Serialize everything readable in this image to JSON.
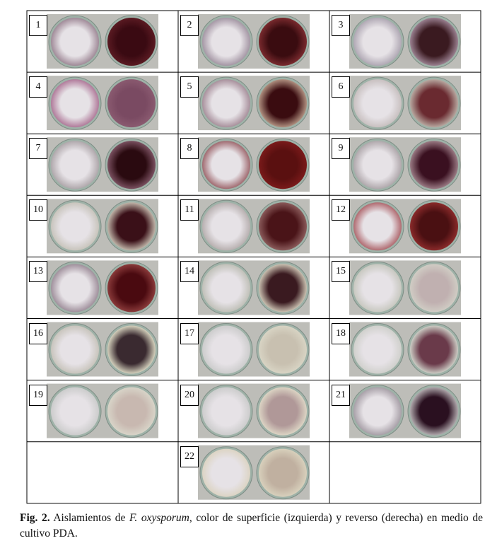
{
  "figure": {
    "cells": [
      {
        "label": "1"
      },
      {
        "label": "2"
      },
      {
        "label": "3"
      },
      {
        "label": "4"
      },
      {
        "label": "5"
      },
      {
        "label": "6"
      },
      {
        "label": "7"
      },
      {
        "label": "8"
      },
      {
        "label": "9"
      },
      {
        "label": "10"
      },
      {
        "label": "11"
      },
      {
        "label": "12"
      },
      {
        "label": "13"
      },
      {
        "label": "14"
      },
      {
        "label": "15"
      },
      {
        "label": "16"
      },
      {
        "label": "17"
      },
      {
        "label": "18"
      },
      {
        "label": "19"
      },
      {
        "label": "20"
      },
      {
        "label": "21"
      },
      {
        "label": "22"
      }
    ]
  },
  "caption": {
    "label": "Fig. 2.",
    "text": "Aislamientos de",
    "species": "F. oxysporum",
    "rest": ", color de superficie (izquierda) y reverso (derecha) en medio de cultivo PDA."
  }
}
